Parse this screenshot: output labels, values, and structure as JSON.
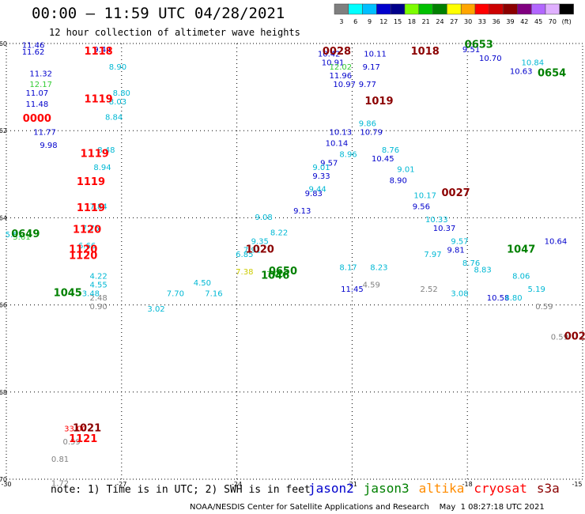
{
  "header": {
    "title": "00:00 – 11:59 UTC 04/28/2021",
    "subtitle": "12 hour collection of altimeter wave heights"
  },
  "colorbar": {
    "labels": [
      "3",
      "6",
      "9",
      "12",
      "15",
      "18",
      "21",
      "24",
      "27",
      "30",
      "33",
      "36",
      "39",
      "42",
      "45",
      "70",
      "(ft)"
    ],
    "colors": [
      "#7f7f7f",
      "#00ffff",
      "#00bfff",
      "#0000cd",
      "#00008b",
      "#7cfc00",
      "#00c000",
      "#008000",
      "#ffff00",
      "#ffa500",
      "#ff0000",
      "#cc0000",
      "#8b0000",
      "#800080",
      "#b266ff",
      "#e0b0ff",
      "#000000"
    ]
  },
  "footer": {
    "note": "note: 1) Time is in UTC; 2) SWH is in feet",
    "credit": "NOAA/NESDIS Center for Satellite Applications and Research    May  1 08:27:18 UTC 2021"
  },
  "legend": [
    {
      "name": "jason2",
      "color": "#0000cc"
    },
    {
      "name": "jason3",
      "color": "#008000"
    },
    {
      "name": "altika",
      "color": "#ff8c00"
    },
    {
      "name": "cryosat",
      "color": "#ff0000"
    },
    {
      "name": "s3a",
      "color": "#8b0000"
    }
  ],
  "chart_data": {
    "type": "scatter",
    "title": "00:00 – 11:59 UTC 04/28/2021",
    "subtitle": "12 hour collection of altimeter wave heights",
    "xlim": [
      -30,
      -15
    ],
    "ylim": [
      -70,
      -60
    ],
    "xticks": [
      -30,
      -27,
      -24,
      -21,
      -18,
      -15
    ],
    "yticks": [
      -60,
      -62,
      -64,
      -66,
      -68,
      -70
    ],
    "grid": true,
    "legend_position": "bottom",
    "time_stamps": [
      {
        "label": "1118",
        "x": -27.6,
        "y": -60.25,
        "sat": "cryosat"
      },
      {
        "label": "1119",
        "x": -27.6,
        "y": -61.35,
        "sat": "cryosat"
      },
      {
        "label": "1119",
        "x": -27.7,
        "y": -62.6,
        "sat": "cryosat"
      },
      {
        "label": "1119",
        "x": -27.8,
        "y": -63.25,
        "sat": "cryosat"
      },
      {
        "label": "1119",
        "x": -27.8,
        "y": -63.85,
        "sat": "cryosat"
      },
      {
        "label": "1120",
        "x": -27.9,
        "y": -64.35,
        "sat": "cryosat"
      },
      {
        "label": "1120",
        "x": -28.0,
        "y": -64.8,
        "sat": "cryosat"
      },
      {
        "label": "1120",
        "x": -28.0,
        "y": -64.95,
        "sat": "cryosat"
      },
      {
        "label": "0000",
        "x": -29.2,
        "y": -61.8,
        "sat": "cryosat"
      },
      {
        "label": "1021",
        "x": -27.9,
        "y": -68.9,
        "sat": "s3a"
      },
      {
        "label": "1121",
        "x": -28.0,
        "y": -69.15,
        "sat": "cryosat"
      },
      {
        "label": "1045",
        "x": -28.4,
        "y": -65.8,
        "sat": "jason3"
      },
      {
        "label": "0649",
        "x": -29.5,
        "y": -64.45,
        "sat": "jason3"
      },
      {
        "label": "1020",
        "x": -23.4,
        "y": -64.8,
        "sat": "s3a"
      },
      {
        "label": "1046",
        "x": -23.0,
        "y": -65.4,
        "sat": "jason3"
      },
      {
        "label": "0650",
        "x": -22.8,
        "y": -65.3,
        "sat": "jason3"
      },
      {
        "label": "0028",
        "x": -21.4,
        "y": -60.25,
        "sat": "s3a"
      },
      {
        "label": "1018",
        "x": -19.1,
        "y": -60.25,
        "sat": "s3a"
      },
      {
        "label": "1019",
        "x": -20.3,
        "y": -61.4,
        "sat": "s3a"
      },
      {
        "label": "0027",
        "x": -18.3,
        "y": -63.5,
        "sat": "s3a"
      },
      {
        "label": "0653",
        "x": -17.7,
        "y": -60.1,
        "sat": "jason3"
      },
      {
        "label": "0654",
        "x": -15.8,
        "y": -60.75,
        "sat": "jason3"
      },
      {
        "label": "1047",
        "x": -16.6,
        "y": -64.8,
        "sat": "jason3"
      },
      {
        "label": "002",
        "x": -15.2,
        "y": -66.8,
        "sat": "s3a"
      }
    ],
    "series": [
      {
        "name": "jason2",
        "points": [
          {
            "x": -29.3,
            "y": -60.1,
            "v": "11.46"
          },
          {
            "x": -29.3,
            "y": -60.25,
            "v": "11.62"
          },
          {
            "x": -29.1,
            "y": -60.75,
            "v": "11.32"
          },
          {
            "x": -29.2,
            "y": -61.2,
            "v": "11.07"
          },
          {
            "x": -29.2,
            "y": -61.45,
            "v": "11.48"
          },
          {
            "x": -29.0,
            "y": -62.1,
            "v": "11.77"
          },
          {
            "x": -28.9,
            "y": -62.4,
            "v": "9.98"
          },
          {
            "x": -27.5,
            "y": -60.2,
            "v": "9.44"
          },
          {
            "x": -21.6,
            "y": -60.3,
            "v": "10.42"
          },
          {
            "x": -21.5,
            "y": -60.5,
            "v": "10.91"
          },
          {
            "x": -21.3,
            "y": -60.8,
            "v": "11.96"
          },
          {
            "x": -21.2,
            "y": -61.0,
            "v": "10.97"
          },
          {
            "x": -21.3,
            "y": -62.1,
            "v": "10.13"
          },
          {
            "x": -21.4,
            "y": -62.35,
            "v": "10.14"
          },
          {
            "x": -21.6,
            "y": -62.8,
            "v": "9.57"
          },
          {
            "x": -21.8,
            "y": -63.1,
            "v": "9.33"
          },
          {
            "x": -22.0,
            "y": -63.5,
            "v": "9.83"
          },
          {
            "x": -22.3,
            "y": -63.9,
            "v": "9.13"
          },
          {
            "x": -20.4,
            "y": -60.3,
            "v": "10.11"
          },
          {
            "x": -20.5,
            "y": -60.6,
            "v": "9.17"
          },
          {
            "x": -20.6,
            "y": -61.0,
            "v": "9.77"
          },
          {
            "x": -20.5,
            "y": -62.1,
            "v": "10.79"
          },
          {
            "x": -20.2,
            "y": -62.7,
            "v": "10.45"
          },
          {
            "x": -19.8,
            "y": -63.2,
            "v": "8.90"
          },
          {
            "x": -19.2,
            "y": -63.8,
            "v": "9.56"
          },
          {
            "x": -18.6,
            "y": -64.3,
            "v": "10.37"
          },
          {
            "x": -18.3,
            "y": -64.8,
            "v": "9.81"
          },
          {
            "x": -17.9,
            "y": -60.2,
            "v": "9.51"
          },
          {
            "x": -17.4,
            "y": -60.4,
            "v": "10.70"
          },
          {
            "x": -16.6,
            "y": -60.7,
            "v": "10.63"
          },
          {
            "x": -15.7,
            "y": -64.6,
            "v": "10.64"
          },
          {
            "x": -17.2,
            "y": -65.9,
            "v": "10.58"
          },
          {
            "x": -21.0,
            "y": -65.7,
            "v": "11.45"
          }
        ]
      },
      {
        "name": "jason3",
        "points": [
          {
            "x": -29.1,
            "y": -61.0,
            "v": "12.17"
          },
          {
            "x": -21.3,
            "y": -60.6,
            "v": "12.02"
          },
          {
            "x": -23.0,
            "y": -65.35,
            "v": "7.00"
          },
          {
            "x": -29.6,
            "y": -64.5,
            "v": "5.61"
          }
        ]
      },
      {
        "name": "altika",
        "points": [
          {
            "x": -23.8,
            "y": -65.3,
            "v": "7.38"
          }
        ]
      },
      {
        "name": "cryosat",
        "points": [
          {
            "x": -28.2,
            "y": -68.9,
            "v": "33.00"
          }
        ]
      },
      {
        "name": "s3a",
        "points": [
          {
            "x": -28.3,
            "y": -69.2,
            "v": "0.59"
          },
          {
            "x": -28.6,
            "y": -69.6,
            "v": "0.81"
          },
          {
            "x": -28.6,
            "y": -70.15,
            "v": "1.72"
          },
          {
            "x": -27.6,
            "y": -65.9,
            "v": "2.48"
          },
          {
            "x": -27.6,
            "y": -66.1,
            "v": "0.90"
          },
          {
            "x": -19.0,
            "y": -65.7,
            "v": "2.52"
          },
          {
            "x": -20.5,
            "y": -65.6,
            "v": "4.59"
          },
          {
            "x": -15.6,
            "y": -66.8,
            "v": "0.59"
          },
          {
            "x": -16.0,
            "y": -66.1,
            "v": "0.59"
          }
        ]
      },
      {
        "name": "cyan-low",
        "points": [
          {
            "x": -27.6,
            "y": -65.4,
            "v": "4.22"
          },
          {
            "x": -27.6,
            "y": -65.6,
            "v": "4.55"
          },
          {
            "x": -27.8,
            "y": -65.8,
            "v": "3.48"
          },
          {
            "x": -25.6,
            "y": -65.8,
            "v": "7.70"
          },
          {
            "x": -24.6,
            "y": -65.8,
            "v": "7.16"
          },
          {
            "x": -26.1,
            "y": -66.15,
            "v": "3.02"
          },
          {
            "x": -24.9,
            "y": -65.55,
            "v": "4.50"
          },
          {
            "x": -18.2,
            "y": -65.8,
            "v": "3.08"
          },
          {
            "x": -16.8,
            "y": -65.9,
            "v": "4.80"
          },
          {
            "x": -20.3,
            "y": -65.2,
            "v": "8.23"
          },
          {
            "x": -21.1,
            "y": -65.2,
            "v": "8.17"
          },
          {
            "x": -18.9,
            "y": -64.9,
            "v": "7.97"
          },
          {
            "x": -16.6,
            "y": -65.4,
            "v": "8.06"
          },
          {
            "x": -16.2,
            "y": -65.7,
            "v": "5.19"
          },
          {
            "x": -29.8,
            "y": -64.45,
            "v": "5.61"
          },
          {
            "x": -23.8,
            "y": -64.9,
            "v": "6.85"
          },
          {
            "x": -27.1,
            "y": -60.6,
            "v": "8.90"
          },
          {
            "x": -27.0,
            "y": -61.2,
            "v": "8.80"
          },
          {
            "x": -27.1,
            "y": -61.4,
            "v": "8.03"
          },
          {
            "x": -27.2,
            "y": -61.75,
            "v": "8.84"
          },
          {
            "x": -27.4,
            "y": -62.5,
            "v": "8.48"
          },
          {
            "x": -27.5,
            "y": -62.9,
            "v": "8.94"
          },
          {
            "x": -27.6,
            "y": -63.8,
            "v": "7.84"
          },
          {
            "x": -27.8,
            "y": -64.3,
            "v": "7.75"
          },
          {
            "x": -27.9,
            "y": -64.7,
            "v": "6.66"
          },
          {
            "x": -22.9,
            "y": -64.4,
            "v": "8.22"
          },
          {
            "x": -23.3,
            "y": -64.05,
            "v": "9.08"
          },
          {
            "x": -23.4,
            "y": -64.6,
            "v": "9.35"
          },
          {
            "x": -21.1,
            "y": -62.6,
            "v": "8.96"
          },
          {
            "x": -21.8,
            "y": -62.9,
            "v": "9.01"
          },
          {
            "x": -21.9,
            "y": -63.4,
            "v": "9.44"
          },
          {
            "x": -20.0,
            "y": -62.5,
            "v": "8.76"
          },
          {
            "x": -19.6,
            "y": -62.95,
            "v": "9.01"
          },
          {
            "x": -19.1,
            "y": -63.55,
            "v": "10.17"
          },
          {
            "x": -18.8,
            "y": -64.1,
            "v": "10.33"
          },
          {
            "x": -18.2,
            "y": -64.6,
            "v": "9.57"
          },
          {
            "x": -17.9,
            "y": -65.1,
            "v": "8.76"
          },
          {
            "x": -17.6,
            "y": -65.25,
            "v": "8.83"
          },
          {
            "x": -20.6,
            "y": -61.9,
            "v": "9.86"
          },
          {
            "x": -23.6,
            "y": -64.8,
            "v": "7.91"
          },
          {
            "x": -16.3,
            "y": -60.5,
            "v": "10.84"
          }
        ]
      }
    ]
  }
}
